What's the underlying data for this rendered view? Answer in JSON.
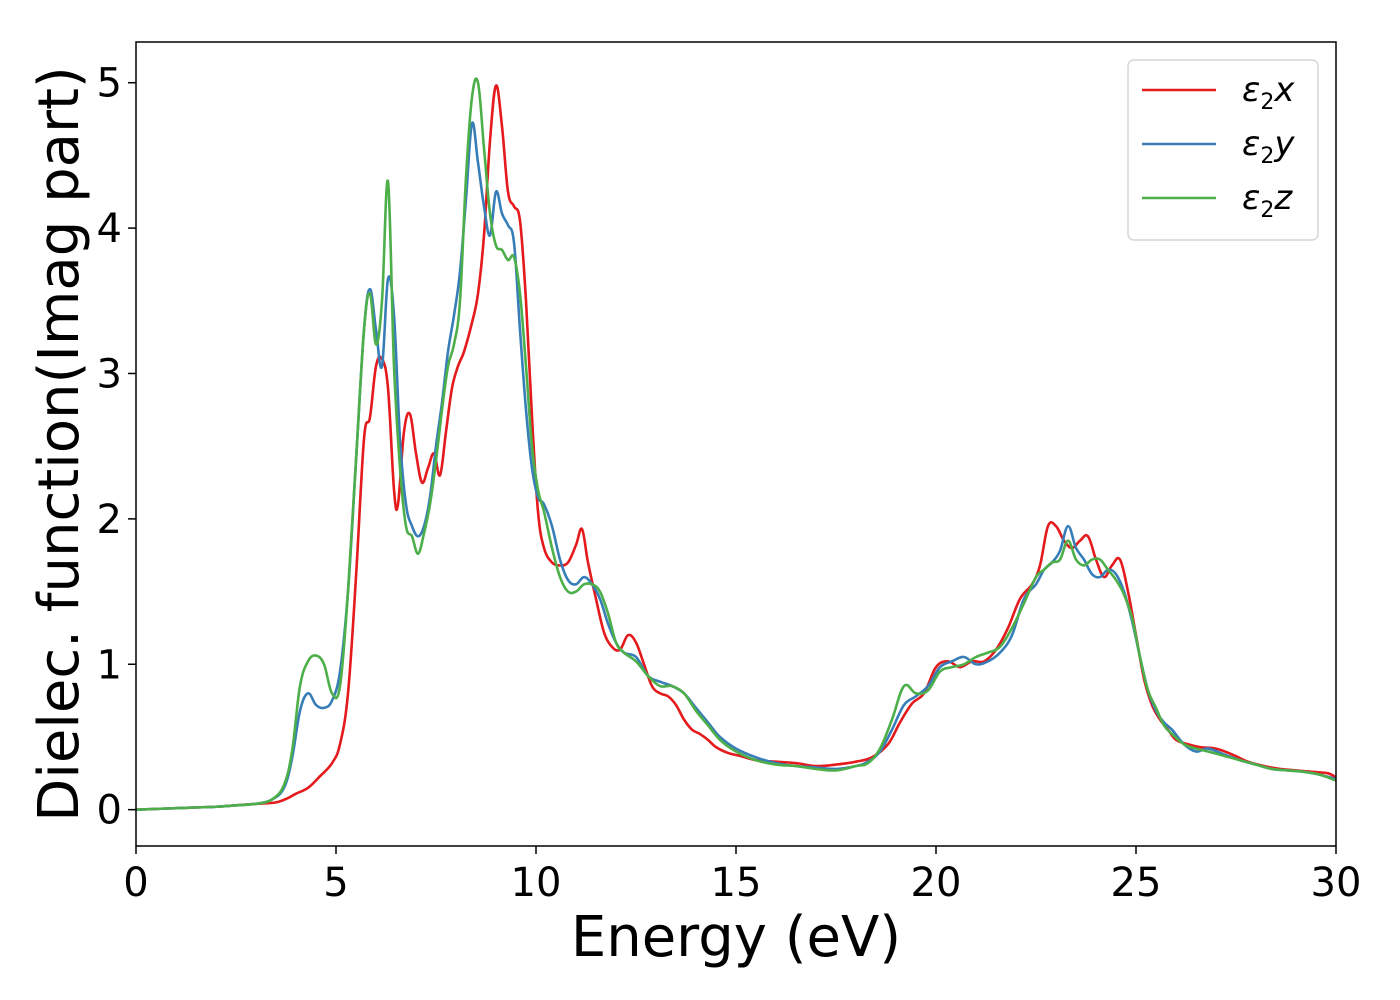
{
  "chart_data": {
    "type": "line",
    "title": "",
    "xlabel": "Energy (eV)",
    "ylabel": "Dielec. function(Imag part)",
    "xlim": [
      0,
      30
    ],
    "ylim": [
      -0.25,
      5.28
    ],
    "xticks": [
      0,
      5,
      10,
      15,
      20,
      25,
      30
    ],
    "yticks": [
      0,
      1,
      2,
      3,
      4,
      5
    ],
    "grid": false,
    "legend_position": "top-right",
    "series": [
      {
        "name": "ε2x",
        "legend_base": "ε",
        "legend_sub": "2",
        "legend_suffix": "x",
        "color": "#e41a1c",
        "x": [
          0,
          1,
          2,
          2.5,
          3,
          3.5,
          3.8,
          4.0,
          4.3,
          4.6,
          4.9,
          5.1,
          5.3,
          5.5,
          5.7,
          5.85,
          6.0,
          6.15,
          6.3,
          6.45,
          6.55,
          6.7,
          6.85,
          7.0,
          7.15,
          7.3,
          7.45,
          7.6,
          7.75,
          7.9,
          8.05,
          8.2,
          8.4,
          8.55,
          8.7,
          8.85,
          9.0,
          9.15,
          9.3,
          9.45,
          9.6,
          9.75,
          9.9,
          10.05,
          10.2,
          10.4,
          10.6,
          10.8,
          11.0,
          11.15,
          11.3,
          11.5,
          11.7,
          11.9,
          12.1,
          12.3,
          12.5,
          12.7,
          12.9,
          13.1,
          13.3,
          13.5,
          13.7,
          13.9,
          14.1,
          14.3,
          14.5,
          14.8,
          15.1,
          15.5,
          16.0,
          16.5,
          17.0,
          17.5,
          18.0,
          18.4,
          18.8,
          19.1,
          19.4,
          19.7,
          20.0,
          20.3,
          20.6,
          20.9,
          21.2,
          21.5,
          21.8,
          22.1,
          22.4,
          22.6,
          22.8,
          23.0,
          23.2,
          23.4,
          23.6,
          23.8,
          24.0,
          24.2,
          24.4,
          24.6,
          24.8,
          25.0,
          25.2,
          25.4,
          25.6,
          25.8,
          26.0,
          26.3,
          26.6,
          27.0,
          27.4,
          27.8,
          28.2,
          28.6,
          29.0,
          29.4,
          29.8,
          30.0
        ],
        "y": [
          0.0,
          0.01,
          0.02,
          0.03,
          0.04,
          0.05,
          0.08,
          0.11,
          0.15,
          0.23,
          0.32,
          0.45,
          0.8,
          1.6,
          2.55,
          2.7,
          3.05,
          3.1,
          2.9,
          2.2,
          2.1,
          2.6,
          2.72,
          2.45,
          2.25,
          2.35,
          2.45,
          2.3,
          2.6,
          2.9,
          3.05,
          3.15,
          3.35,
          3.55,
          3.95,
          4.6,
          4.98,
          4.7,
          4.25,
          4.15,
          4.05,
          3.5,
          2.7,
          2.05,
          1.8,
          1.7,
          1.68,
          1.7,
          1.82,
          1.93,
          1.7,
          1.45,
          1.22,
          1.12,
          1.1,
          1.2,
          1.15,
          1.0,
          0.85,
          0.8,
          0.78,
          0.72,
          0.62,
          0.55,
          0.52,
          0.48,
          0.43,
          0.39,
          0.37,
          0.34,
          0.33,
          0.32,
          0.3,
          0.31,
          0.33,
          0.36,
          0.45,
          0.6,
          0.73,
          0.8,
          0.98,
          1.02,
          0.98,
          1.02,
          1.02,
          1.1,
          1.25,
          1.45,
          1.55,
          1.68,
          1.95,
          1.95,
          1.85,
          1.8,
          1.85,
          1.88,
          1.72,
          1.6,
          1.68,
          1.72,
          1.5,
          1.2,
          0.9,
          0.72,
          0.62,
          0.55,
          0.48,
          0.45,
          0.43,
          0.42,
          0.38,
          0.33,
          0.3,
          0.28,
          0.27,
          0.26,
          0.25,
          0.22
        ]
      },
      {
        "name": "ε2y",
        "legend_base": "ε",
        "legend_sub": "2",
        "legend_suffix": "y",
        "color": "#377eb8",
        "x": [
          0,
          1,
          2,
          2.5,
          3,
          3.4,
          3.7,
          3.9,
          4.1,
          4.3,
          4.5,
          4.7,
          4.9,
          5.1,
          5.3,
          5.5,
          5.7,
          5.85,
          6.0,
          6.15,
          6.3,
          6.45,
          6.6,
          6.75,
          6.9,
          7.05,
          7.2,
          7.35,
          7.5,
          7.65,
          7.8,
          7.95,
          8.1,
          8.25,
          8.4,
          8.55,
          8.7,
          8.85,
          9.0,
          9.15,
          9.3,
          9.45,
          9.6,
          9.75,
          9.9,
          10.05,
          10.2,
          10.4,
          10.6,
          10.8,
          11.0,
          11.2,
          11.4,
          11.6,
          11.8,
          12.0,
          12.2,
          12.5,
          12.8,
          13.1,
          13.4,
          13.7,
          14.0,
          14.3,
          14.6,
          15.0,
          15.5,
          16.0,
          16.5,
          17.0,
          17.5,
          18.0,
          18.3,
          18.6,
          18.9,
          19.2,
          19.5,
          19.8,
          20.1,
          20.4,
          20.7,
          21.0,
          21.3,
          21.6,
          21.9,
          22.2,
          22.5,
          22.7,
          22.9,
          23.1,
          23.3,
          23.5,
          23.7,
          23.9,
          24.1,
          24.3,
          24.5,
          24.7,
          24.9,
          25.1,
          25.3,
          25.5,
          25.7,
          25.9,
          26.2,
          26.5,
          26.8,
          27.2,
          27.6,
          28.0,
          28.4,
          28.8,
          29.2,
          29.6,
          30.0
        ],
        "y": [
          0.0,
          0.01,
          0.02,
          0.03,
          0.04,
          0.07,
          0.15,
          0.35,
          0.68,
          0.8,
          0.72,
          0.7,
          0.75,
          0.95,
          1.5,
          2.4,
          3.3,
          3.58,
          3.3,
          3.05,
          3.65,
          3.4,
          2.55,
          2.1,
          1.95,
          1.88,
          1.95,
          2.15,
          2.5,
          2.8,
          3.15,
          3.4,
          3.7,
          4.2,
          4.72,
          4.45,
          4.15,
          3.95,
          4.25,
          4.1,
          4.02,
          3.9,
          3.3,
          2.75,
          2.35,
          2.15,
          2.1,
          1.95,
          1.72,
          1.58,
          1.55,
          1.6,
          1.55,
          1.45,
          1.28,
          1.15,
          1.08,
          1.05,
          0.92,
          0.88,
          0.85,
          0.8,
          0.7,
          0.6,
          0.5,
          0.42,
          0.36,
          0.32,
          0.3,
          0.29,
          0.28,
          0.3,
          0.33,
          0.4,
          0.55,
          0.72,
          0.78,
          0.85,
          0.98,
          1.02,
          1.05,
          1.0,
          1.02,
          1.08,
          1.2,
          1.45,
          1.55,
          1.65,
          1.7,
          1.78,
          1.95,
          1.8,
          1.72,
          1.62,
          1.6,
          1.65,
          1.62,
          1.5,
          1.3,
          1.05,
          0.82,
          0.68,
          0.6,
          0.55,
          0.45,
          0.4,
          0.42,
          0.38,
          0.34,
          0.31,
          0.28,
          0.27,
          0.26,
          0.24,
          0.21
        ]
      },
      {
        "name": "ε2z",
        "legend_base": "ε",
        "legend_sub": "2",
        "legend_suffix": "z",
        "color": "#4daf4a",
        "x": [
          0,
          1,
          2,
          2.5,
          3,
          3.4,
          3.7,
          3.9,
          4.1,
          4.3,
          4.5,
          4.7,
          4.9,
          5.1,
          5.3,
          5.5,
          5.7,
          5.85,
          6.0,
          6.15,
          6.3,
          6.45,
          6.6,
          6.75,
          6.9,
          7.05,
          7.2,
          7.35,
          7.5,
          7.65,
          7.8,
          7.95,
          8.1,
          8.25,
          8.4,
          8.55,
          8.7,
          8.85,
          9.0,
          9.15,
          9.3,
          9.45,
          9.6,
          9.75,
          9.9,
          10.05,
          10.2,
          10.4,
          10.6,
          10.8,
          11.0,
          11.2,
          11.4,
          11.6,
          11.8,
          12.0,
          12.2,
          12.5,
          12.8,
          13.1,
          13.4,
          13.7,
          14.0,
          14.3,
          14.6,
          15.0,
          15.5,
          16.0,
          16.5,
          17.0,
          17.5,
          18.0,
          18.3,
          18.6,
          18.9,
          19.2,
          19.5,
          19.8,
          20.1,
          20.4,
          20.7,
          21.0,
          21.3,
          21.6,
          21.9,
          22.2,
          22.5,
          22.7,
          22.9,
          23.1,
          23.3,
          23.5,
          23.7,
          23.9,
          24.1,
          24.3,
          24.5,
          24.7,
          24.9,
          25.1,
          25.3,
          25.5,
          25.7,
          25.9,
          26.2,
          26.5,
          26.8,
          27.2,
          27.6,
          28.0,
          28.4,
          28.8,
          29.2,
          29.6,
          30.0
        ],
        "y": [
          0.0,
          0.01,
          0.02,
          0.03,
          0.04,
          0.07,
          0.17,
          0.4,
          0.85,
          1.02,
          1.06,
          1.0,
          0.8,
          0.85,
          1.5,
          2.4,
          3.3,
          3.55,
          3.2,
          3.5,
          4.32,
          3.05,
          2.35,
          1.95,
          1.88,
          1.76,
          1.9,
          2.1,
          2.4,
          2.75,
          3.05,
          3.2,
          3.5,
          4.35,
          4.9,
          5.0,
          4.55,
          4.1,
          3.88,
          3.85,
          3.78,
          3.8,
          3.55,
          3.05,
          2.5,
          2.2,
          2.05,
          1.8,
          1.6,
          1.5,
          1.5,
          1.55,
          1.55,
          1.5,
          1.35,
          1.15,
          1.08,
          1.02,
          0.92,
          0.85,
          0.85,
          0.8,
          0.68,
          0.58,
          0.48,
          0.4,
          0.34,
          0.31,
          0.3,
          0.28,
          0.27,
          0.3,
          0.32,
          0.42,
          0.62,
          0.85,
          0.8,
          0.82,
          0.95,
          0.98,
          1.0,
          1.05,
          1.08,
          1.12,
          1.25,
          1.42,
          1.6,
          1.65,
          1.7,
          1.72,
          1.85,
          1.72,
          1.68,
          1.72,
          1.72,
          1.65,
          1.58,
          1.48,
          1.32,
          1.05,
          0.82,
          0.7,
          0.58,
          0.52,
          0.45,
          0.42,
          0.4,
          0.37,
          0.34,
          0.31,
          0.28,
          0.27,
          0.26,
          0.24,
          0.2
        ]
      }
    ]
  }
}
